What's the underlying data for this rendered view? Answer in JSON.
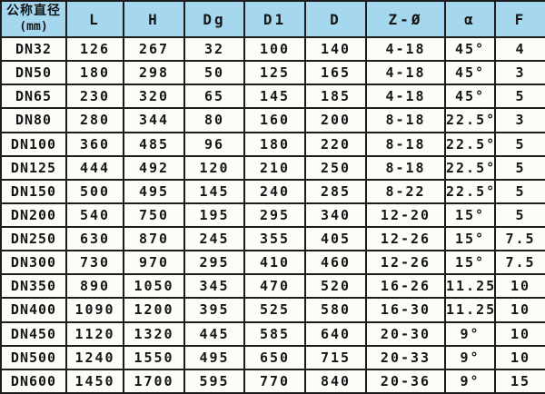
{
  "table": {
    "title_cell": {
      "line1": "公称直径",
      "line2": "(mm)"
    },
    "header": {
      "columns": [
        "L",
        "H",
        "Dg",
        "D1",
        "D",
        "Z-Ø",
        "α",
        "F"
      ]
    },
    "rows": [
      [
        "DN32",
        "126",
        "267",
        "32",
        "100",
        "140",
        "4-18",
        "45°",
        "4"
      ],
      [
        "DN50",
        "180",
        "298",
        "50",
        "125",
        "165",
        "4-18",
        "45°",
        "3"
      ],
      [
        "DN65",
        "230",
        "320",
        "65",
        "145",
        "185",
        "4-18",
        "45°",
        "5"
      ],
      [
        "DN80",
        "280",
        "344",
        "80",
        "160",
        "200",
        "8-18",
        "22.5°",
        "3"
      ],
      [
        "DN100",
        "360",
        "485",
        "96",
        "180",
        "220",
        "8-18",
        "22.5°",
        "5"
      ],
      [
        "DN125",
        "444",
        "492",
        "120",
        "210",
        "250",
        "8-18",
        "22.5°",
        "5"
      ],
      [
        "DN150",
        "500",
        "495",
        "145",
        "240",
        "285",
        "8-22",
        "22.5°",
        "5"
      ],
      [
        "DN200",
        "540",
        "750",
        "195",
        "295",
        "340",
        "12-20",
        "15°",
        "5"
      ],
      [
        "DN250",
        "630",
        "870",
        "245",
        "355",
        "405",
        "12-26",
        "15°",
        "7.5"
      ],
      [
        "DN300",
        "730",
        "970",
        "295",
        "410",
        "460",
        "12-26",
        "15°",
        "7.5"
      ],
      [
        "DN350",
        "890",
        "1050",
        "345",
        "470",
        "520",
        "16-26",
        "11.25°",
        "10"
      ],
      [
        "DN400",
        "1090",
        "1200",
        "395",
        "525",
        "580",
        "16-30",
        "11.25°",
        "10"
      ],
      [
        "DN450",
        "1120",
        "1320",
        "445",
        "585",
        "640",
        "20-30",
        "9°",
        "10"
      ],
      [
        "DN500",
        "1240",
        "1550",
        "495",
        "650",
        "715",
        "20-33",
        "9°",
        "10"
      ],
      [
        "DN600",
        "1450",
        "1700",
        "595",
        "770",
        "840",
        "20-36",
        "9°",
        "15"
      ]
    ]
  },
  "colors": {
    "header_bg": "#a5d8ee",
    "grid_border": "#1c1c1c",
    "cell_bg": "#fdfcf8",
    "text": "#161616"
  }
}
